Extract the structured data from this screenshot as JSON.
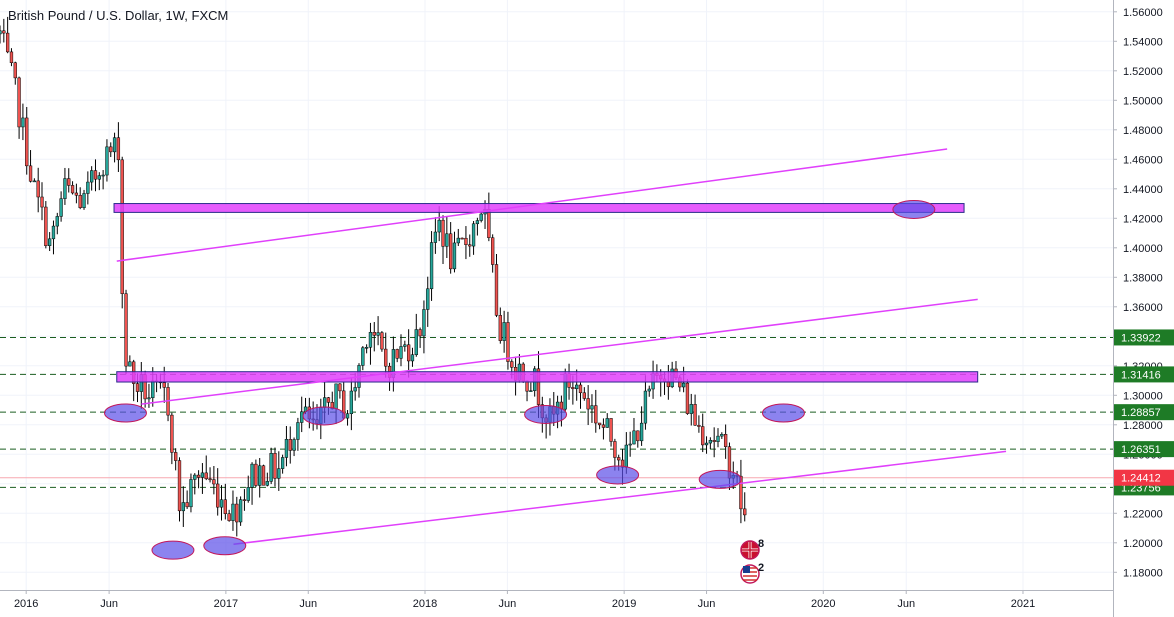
{
  "chart_data": {
    "type": "candlestick",
    "title": "British Pound / U.S. Dollar, 1W, FXCM",
    "x_range": [
      "2015-11-14",
      "2021-06-15"
    ],
    "ylim": [
      1.168,
      1.568
    ],
    "y_ticks": [
      1.56,
      1.54,
      1.52,
      1.5,
      1.48,
      1.46,
      1.44,
      1.42,
      1.4,
      1.38,
      1.36,
      1.34,
      1.32,
      1.3,
      1.28,
      1.26,
      1.24,
      1.22,
      1.2,
      1.18
    ],
    "y_tick_labels": [
      "1.56000",
      "1.54000",
      "1.52000",
      "1.50000",
      "1.48000",
      "1.46000",
      "1.44000",
      "1.42000",
      "1.40000",
      "1.38000",
      "1.36000",
      "1.34000",
      "1.32000",
      "1.30000",
      "1.28000",
      "1.26000",
      "1.24000",
      "1.22000",
      "1.20000",
      "1.18000"
    ],
    "x_ticks": [
      {
        "date": "2016-01-01",
        "label": "2016"
      },
      {
        "date": "2016-06-01",
        "label": "Jun"
      },
      {
        "date": "2017-01-01",
        "label": "2017"
      },
      {
        "date": "2017-06-01",
        "label": "Jun"
      },
      {
        "date": "2018-01-01",
        "label": "2018"
      },
      {
        "date": "2018-06-01",
        "label": "Jun"
      },
      {
        "date": "2019-01-01",
        "label": "2019"
      },
      {
        "date": "2019-06-01",
        "label": "Jun"
      },
      {
        "date": "2020-01-01",
        "label": "2020"
      },
      {
        "date": "2020-06-01",
        "label": "Jun"
      },
      {
        "date": "2021-01-01",
        "label": "2021"
      }
    ],
    "price_path": [
      [
        "2015-11-14",
        1.545
      ],
      [
        "2015-12-15",
        1.5
      ],
      [
        "2016-01-15",
        1.44
      ],
      [
        "2016-02-15",
        1.4
      ],
      [
        "2016-03-10",
        1.44
      ],
      [
        "2016-04-15",
        1.43
      ],
      [
        "2016-05-20",
        1.46
      ],
      [
        "2016-06-20",
        1.47
      ],
      [
        "2016-06-27",
        1.33
      ],
      [
        "2016-07-15",
        1.31
      ],
      [
        "2016-08-15",
        1.3
      ],
      [
        "2016-09-15",
        1.3
      ],
      [
        "2016-10-10",
        1.22
      ],
      [
        "2016-11-15",
        1.25
      ],
      [
        "2016-12-15",
        1.235
      ],
      [
        "2017-01-15",
        1.22
      ],
      [
        "2017-02-15",
        1.245
      ],
      [
        "2017-03-15",
        1.25
      ],
      [
        "2017-04-10",
        1.25
      ],
      [
        "2017-05-15",
        1.29
      ],
      [
        "2017-06-15",
        1.275
      ],
      [
        "2017-07-15",
        1.3
      ],
      [
        "2017-08-15",
        1.29
      ],
      [
        "2017-09-20",
        1.35
      ],
      [
        "2017-10-20",
        1.32
      ],
      [
        "2017-11-20",
        1.33
      ],
      [
        "2017-12-20",
        1.34
      ],
      [
        "2018-01-25",
        1.42
      ],
      [
        "2018-02-20",
        1.39
      ],
      [
        "2018-03-25",
        1.41
      ],
      [
        "2018-04-17",
        1.43
      ],
      [
        "2018-05-15",
        1.35
      ],
      [
        "2018-06-15",
        1.32
      ],
      [
        "2018-07-20",
        1.31
      ],
      [
        "2018-08-20",
        1.28
      ],
      [
        "2018-09-20",
        1.31
      ],
      [
        "2018-10-20",
        1.3
      ],
      [
        "2018-11-20",
        1.28
      ],
      [
        "2018-12-20",
        1.265
      ],
      [
        "2019-01-03",
        1.255
      ],
      [
        "2019-02-15",
        1.3
      ],
      [
        "2019-03-15",
        1.32
      ],
      [
        "2019-04-15",
        1.305
      ],
      [
        "2019-05-15",
        1.28
      ],
      [
        "2019-06-20",
        1.27
      ],
      [
        "2019-07-20",
        1.25
      ],
      [
        "2019-08-10",
        1.215
      ]
    ],
    "h_levels": [
      {
        "value": 1.33922,
        "label": "1.33922",
        "badge_color": "#1e7b26"
      },
      {
        "value": 1.31416,
        "label": "1.31416",
        "badge_color": "#1e7b26"
      },
      {
        "value": 1.28857,
        "label": "1.28857",
        "badge_color": "#1e7b26"
      },
      {
        "value": 1.26351,
        "label": "1.26351",
        "badge_color": "#1e7b26"
      },
      {
        "value": 1.23756,
        "label": "1.23756",
        "badge_color": "#1e7b26"
      }
    ],
    "current_price": {
      "value": 1.24412,
      "label": "1.24412",
      "badge_color": "#f23645"
    },
    "zones": [
      {
        "x_start": "2016-06-10",
        "x_end": "2020-09-15",
        "y_top": 1.43,
        "y_bottom": 1.424
      },
      {
        "x_start": "2016-06-15",
        "x_end": "2020-10-10",
        "y_top": 1.316,
        "y_bottom": 1.309
      }
    ],
    "trendlines": [
      {
        "start": [
          "2016-06-15",
          1.391
        ],
        "end": [
          "2020-08-15",
          1.467
        ]
      },
      {
        "start": [
          "2016-07-30",
          1.294
        ],
        "end": [
          "2020-10-10",
          1.365
        ]
      },
      {
        "start": [
          "2017-01-15",
          1.199
        ],
        "end": [
          "2020-12-01",
          1.262
        ]
      }
    ],
    "markers": [
      [
        "2016-07-01",
        1.288
      ],
      [
        "2016-09-26",
        1.195
      ],
      [
        "2016-12-30",
        1.198
      ],
      [
        "2017-06-30",
        1.286
      ],
      [
        "2018-08-10",
        1.287
      ],
      [
        "2018-12-20",
        1.246
      ],
      [
        "2019-06-26",
        1.243
      ],
      [
        "2019-10-20",
        1.288
      ],
      [
        "2020-06-15",
        1.426
      ]
    ],
    "colors": {
      "up": "#26a69a",
      "down": "#ef5350",
      "zone": "#e040fb",
      "marker": "#5b4ee8",
      "trend": "#e040fb"
    },
    "flag_events": [
      {
        "count": "8",
        "icon": "gb-flag-icon"
      },
      {
        "count": "2",
        "icon": "us-flag-icon"
      }
    ]
  }
}
